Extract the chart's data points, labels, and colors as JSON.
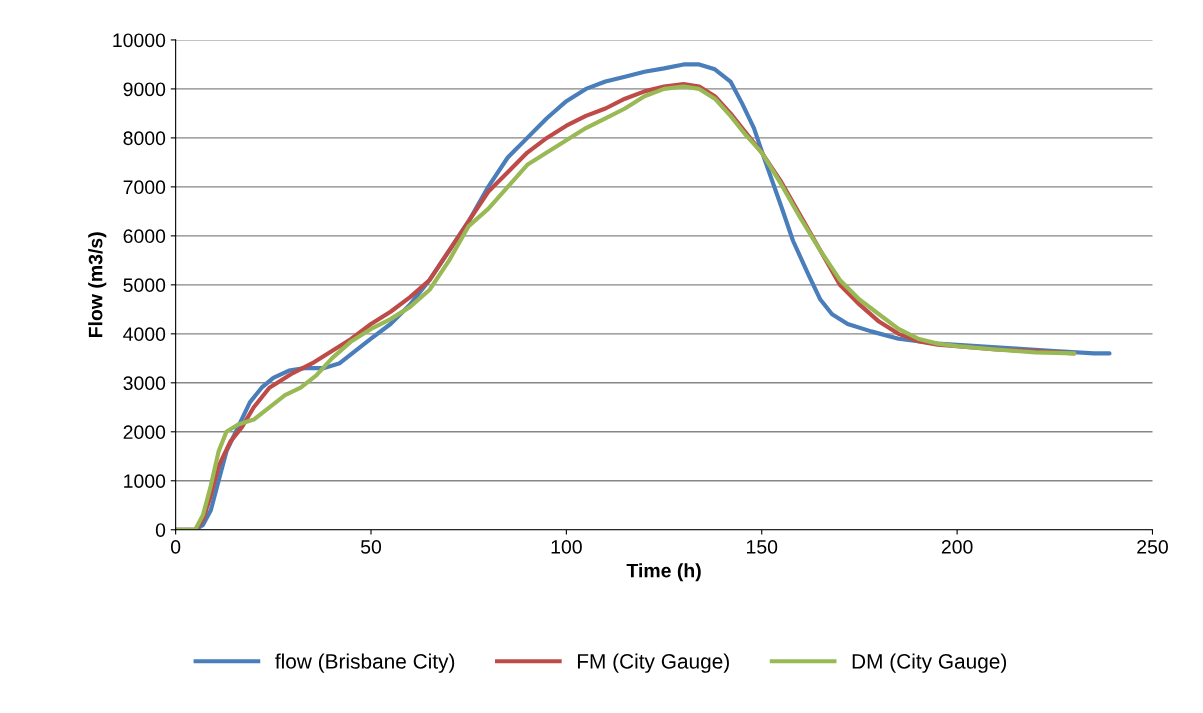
{
  "chart_data": {
    "type": "line",
    "xlabel": "Time (h)",
    "ylabel": "Flow (m3/s)",
    "xlim": [
      0,
      250
    ],
    "xticks": [
      0,
      50,
      100,
      150,
      200,
      250
    ],
    "ylim": [
      0,
      10000
    ],
    "yticks": [
      0,
      1000,
      2000,
      3000,
      4000,
      5000,
      6000,
      7000,
      8000,
      9000,
      10000
    ],
    "grid": "y",
    "legend": "bottom",
    "marker": "none",
    "line_style": "solid",
    "series": [
      {
        "name": "flow (Brisbane City)",
        "color": "#4a7ebb",
        "x": [
          0,
          5,
          7,
          9,
          11,
          13,
          16,
          19,
          22,
          25,
          29,
          33,
          38,
          42,
          46,
          50,
          55,
          60,
          65,
          70,
          75,
          80,
          85,
          90,
          95,
          100,
          105,
          110,
          115,
          120,
          125,
          130,
          134,
          138,
          142,
          145,
          148,
          151,
          155,
          158,
          162,
          165,
          168,
          172,
          178,
          185,
          195,
          205,
          215,
          225,
          235,
          239
        ],
        "values": [
          0,
          0,
          100,
          400,
          1000,
          1600,
          2100,
          2600,
          2900,
          3100,
          3250,
          3300,
          3300,
          3400,
          3650,
          3900,
          4200,
          4600,
          5100,
          5700,
          6300,
          7000,
          7600,
          8000,
          8400,
          8750,
          9000,
          9150,
          9250,
          9350,
          9420,
          9500,
          9500,
          9400,
          9150,
          8700,
          8200,
          7500,
          6600,
          5900,
          5200,
          4700,
          4400,
          4200,
          4050,
          3900,
          3800,
          3750,
          3700,
          3650,
          3600,
          3600
        ]
      },
      {
        "name": "FM (City Gauge)",
        "color": "#be4b48",
        "x": [
          0,
          5,
          7,
          9,
          11,
          14,
          17,
          20,
          24,
          30,
          35,
          40,
          45,
          50,
          55,
          60,
          65,
          70,
          75,
          80,
          85,
          90,
          95,
          100,
          105,
          110,
          115,
          120,
          125,
          130,
          134,
          138,
          142,
          146,
          150,
          155,
          160,
          165,
          170,
          175,
          180,
          185,
          190,
          195,
          200,
          210,
          220,
          230
        ],
        "values": [
          0,
          0,
          200,
          700,
          1300,
          1800,
          2100,
          2500,
          2900,
          3200,
          3400,
          3650,
          3900,
          4200,
          4450,
          4750,
          5100,
          5700,
          6300,
          6900,
          7300,
          7700,
          8000,
          8250,
          8450,
          8600,
          8800,
          8950,
          9050,
          9100,
          9050,
          8850,
          8500,
          8100,
          7700,
          7100,
          6400,
          5700,
          5000,
          4600,
          4250,
          4000,
          3850,
          3780,
          3750,
          3680,
          3650,
          3600
        ]
      },
      {
        "name": "DM (City Gauge)",
        "color": "#98b954",
        "x": [
          0,
          5,
          7,
          9,
          11,
          13,
          16,
          20,
          24,
          28,
          32,
          36,
          40,
          45,
          50,
          55,
          60,
          65,
          70,
          75,
          80,
          85,
          90,
          95,
          100,
          105,
          110,
          115,
          120,
          125,
          130,
          134,
          138,
          142,
          146,
          150,
          155,
          160,
          165,
          170,
          175,
          180,
          185,
          190,
          195,
          200,
          210,
          220,
          230
        ],
        "values": [
          0,
          0,
          300,
          900,
          1600,
          2000,
          2150,
          2250,
          2500,
          2750,
          2900,
          3150,
          3500,
          3850,
          4100,
          4300,
          4550,
          4900,
          5500,
          6200,
          6550,
          7000,
          7450,
          7700,
          7950,
          8200,
          8400,
          8600,
          8850,
          9000,
          9050,
          9000,
          8800,
          8450,
          8050,
          7700,
          7050,
          6350,
          5700,
          5100,
          4700,
          4400,
          4100,
          3900,
          3800,
          3750,
          3680,
          3620,
          3600
        ]
      }
    ]
  }
}
